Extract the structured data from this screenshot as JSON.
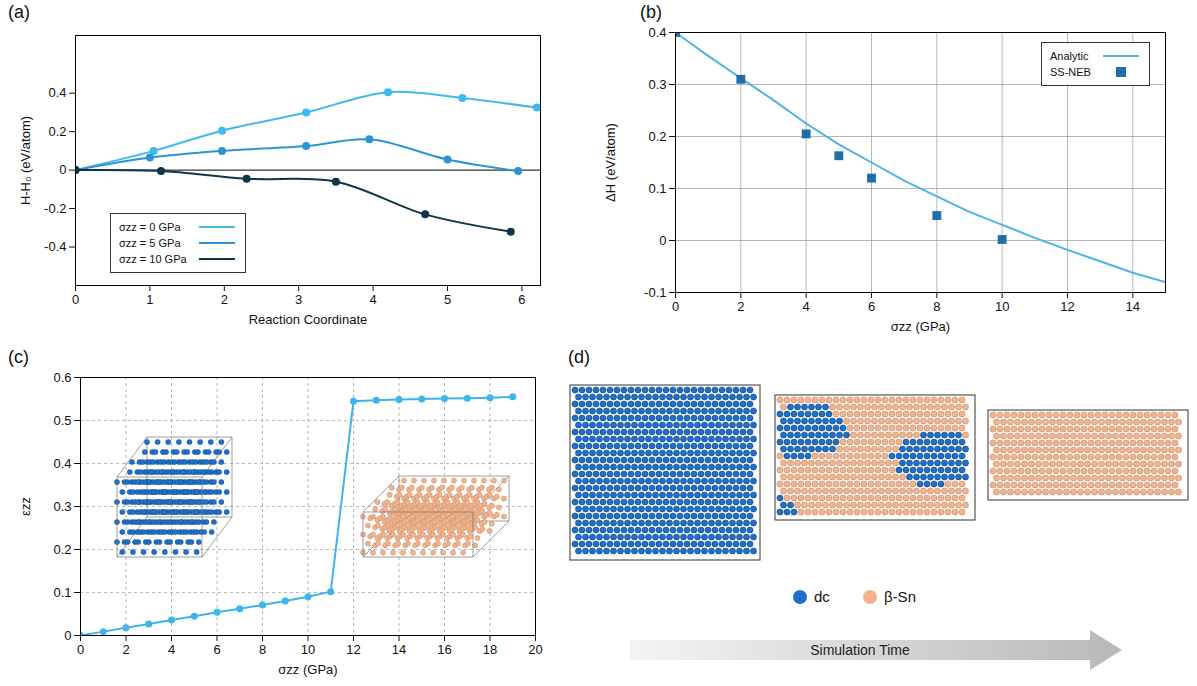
{
  "chart_data": [
    {
      "type": "line",
      "title": "(a)",
      "xlabel": "Reaction Coordinate",
      "ylabel": "H-H₀ (eV/atom)",
      "xlim": [
        0,
        6.25
      ],
      "xticks": [
        0,
        1,
        2,
        3,
        4,
        5,
        6
      ],
      "ylim": [
        -0.6,
        0.7
      ],
      "yticks": [
        -0.4,
        -0.2,
        0,
        0.2,
        0.4
      ],
      "reference_line": 0,
      "legend": "lower left",
      "series": [
        {
          "name": "σzz = 0 GPa",
          "color": "#40b9ec",
          "marker": "circle",
          "x": [
            0,
            1.05,
            1.97,
            3.1,
            4.2,
            5.2,
            6.2
          ],
          "values": [
            0,
            0.1,
            0.205,
            0.3,
            0.405,
            0.375,
            0.325
          ]
        },
        {
          "name": "σzz = 5 GPa",
          "color": "#2a95d2",
          "marker": "circle",
          "x": [
            0,
            1,
            1.97,
            3.1,
            3.95,
            5,
            5.95
          ],
          "values": [
            0,
            0.065,
            0.1,
            0.125,
            0.16,
            0.055,
            -0.005
          ]
        },
        {
          "name": "σzz = 10 GPa",
          "color": "#0e3547",
          "marker": "circle",
          "x": [
            0,
            1.15,
            2.3,
            3.5,
            4.7,
            5.85
          ],
          "values": [
            0,
            -0.005,
            -0.045,
            -0.06,
            -0.23,
            -0.32
          ]
        }
      ]
    },
    {
      "type": "line",
      "title": "(b)",
      "xlabel": "σzz (GPa)",
      "ylabel": "ΔH (eV/atom)",
      "xlim": [
        0,
        15
      ],
      "xticks": [
        0,
        2,
        4,
        6,
        8,
        10,
        12,
        14
      ],
      "ylim": [
        -0.1,
        0.4
      ],
      "yticks": [
        -0.1,
        0,
        0.1,
        0.2,
        0.3,
        0.4
      ],
      "grid": true,
      "legend": "upper right",
      "series": [
        {
          "name": "Analytic",
          "type": "line",
          "color": "#4db3e6",
          "x": [
            0,
            1,
            2,
            3,
            4,
            5,
            6,
            7,
            8,
            9,
            10,
            11,
            12,
            13,
            14,
            15
          ],
          "values": [
            0.4,
            0.355,
            0.312,
            0.27,
            0.225,
            0.185,
            0.15,
            0.115,
            0.085,
            0.055,
            0.03,
            0.005,
            -0.018,
            -0.04,
            -0.062,
            -0.08
          ]
        },
        {
          "name": "SS-NEB",
          "type": "scatter",
          "marker": "square",
          "color": "#1f6eaa",
          "x": [
            0,
            2,
            4,
            5,
            6,
            8,
            10
          ],
          "values": [
            0.4,
            0.31,
            0.205,
            0.163,
            0.12,
            0.048,
            0.002
          ]
        }
      ]
    },
    {
      "type": "line",
      "title": "(c)",
      "xlabel": "σzz (GPa)",
      "ylabel": "εzz",
      "xlim": [
        0,
        20
      ],
      "xticks": [
        0,
        2,
        4,
        6,
        8,
        10,
        12,
        14,
        16,
        18,
        20
      ],
      "ylim": [
        0,
        0.6
      ],
      "yticks": [
        0,
        0.1,
        0.2,
        0.3,
        0.4,
        0.5,
        0.6
      ],
      "grid": true,
      "series": [
        {
          "color": "#3db5ea",
          "marker": "circle",
          "x": [
            0,
            1,
            2,
            3,
            4,
            5,
            6,
            7,
            8,
            9,
            10,
            11,
            12,
            13,
            14,
            15,
            16,
            17,
            18,
            19
          ],
          "values": [
            0,
            0.009,
            0.018,
            0.027,
            0.036,
            0.045,
            0.054,
            0.062,
            0.071,
            0.08,
            0.09,
            0.102,
            0.545,
            0.547,
            0.549,
            0.55,
            0.551,
            0.552,
            0.553,
            0.555
          ]
        }
      ]
    },
    {
      "type": "diagram",
      "title": "(d)",
      "series": [
        {
          "name": "dc",
          "color": "#1f6fc9"
        },
        {
          "name": "β-Sn",
          "color": "#f3b38c"
        }
      ],
      "annotations": [
        "Simulation Time"
      ]
    }
  ]
}
